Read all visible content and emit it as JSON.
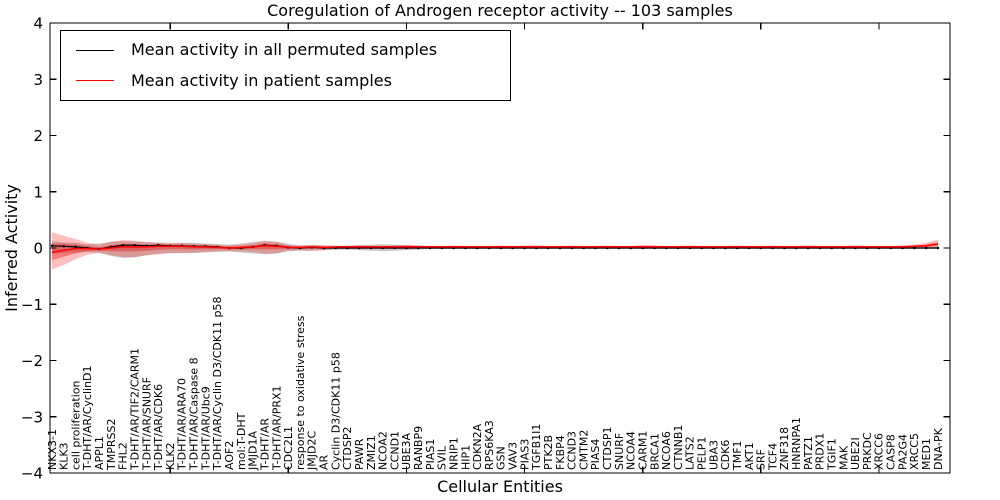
{
  "figure": {
    "title": "Coregulation of Androgen receptor activity -- 103 samples",
    "xlabel": "Cellular Entities",
    "ylabel": "Inferred Activity"
  },
  "legend": {
    "entries": [
      {
        "label": "Mean activity in all permuted samples",
        "color": "#000000"
      },
      {
        "label": "Mean activity in patient samples",
        "color": "#ff0000"
      }
    ]
  },
  "colors": {
    "permuted_line": "#000000",
    "patient_line": "#ff0000",
    "permuted_band": "rgba(128,128,128,0.40)",
    "patient_band": "rgba(255,0,0,0.25)",
    "patient_band_inner": "rgba(230,0,0,0.35)",
    "axes": "#000000",
    "background": "#ffffff"
  },
  "chart_data": {
    "type": "line",
    "title": "Coregulation of Androgen receptor activity -- 103 samples",
    "xlabel": "Cellular Entities",
    "ylabel": "Inferred Activity",
    "ylim": [
      -4,
      4
    ],
    "ytick_values": [
      4,
      3,
      2,
      1,
      0,
      -1,
      -2,
      -3,
      -4
    ],
    "ytick_labels": [
      "4",
      "3",
      "2",
      "1",
      "0",
      "−1",
      "−2",
      "−3",
      "−4"
    ],
    "xtick_step": 10,
    "grid": false,
    "legend_position": "upper left",
    "categories": [
      "NKX3-1",
      "KLK3",
      "cell proliferation",
      "T-DHT/AR/CyclinD1",
      "APPL1",
      "TMPRSS2",
      "FHL2",
      "T-DHT/AR/TIF2/CARM1",
      "T-DHT/AR/SNURF",
      "T-DHT/AR/CDK6",
      "KLK2",
      "T-DHT/AR/ARA70",
      "T-DHT/AR/Caspase 8",
      "T-DHT/AR/Ubc9",
      "T-DHT/AR/Cyclin D3/CDK11 p58",
      "AOF2",
      "mol:T-DHT",
      "JMJD1A",
      "T-DHT/AR",
      "T-DHT/AR/PRX1",
      "CDC2L1",
      "response to oxidative stress",
      "JMJD2C",
      "AR",
      "Cyclin D3/CDK11 p58",
      "CTDSP2",
      "PAWR",
      "ZMIZ1",
      "NCOA2",
      "CCND1",
      "UBE3A",
      "RANBP9",
      "PIAS1",
      "SVIL",
      "NRIP1",
      "HIP1",
      "CDKN2A",
      "RPS6KA3",
      "GSN",
      "VAV3",
      "PIAS3",
      "TGFB1I1",
      "PTK2B",
      "FKBP4",
      "CCND3",
      "CMTM2",
      "PIAS4",
      "CTDSP1",
      "SNURF",
      "NCOA4",
      "CARM1",
      "BRCA1",
      "NCOA6",
      "CTNNB1",
      "LATS2",
      "PELP1",
      "UBA3",
      "CDK6",
      "TMF1",
      "AKT1",
      "SRF",
      "TCF4",
      "ZNF318",
      "HNRNPA1",
      "PATZ1",
      "PRDX1",
      "TGIF1",
      "MAK",
      "UBE2I",
      "PRKDC",
      "XRCC6",
      "CASP8",
      "PA2G4",
      "XRCC5",
      "MED1",
      "DNA-PK"
    ],
    "series": [
      {
        "name": "Mean activity in all permuted samples",
        "color": "#000000",
        "values": [
          0.04,
          0.03,
          0.02,
          0,
          -0.02,
          0.02,
          0.05,
          0.05,
          0.04,
          0.05,
          0.04,
          0.04,
          0.03,
          0.03,
          0.02,
          0,
          0,
          0.02,
          0.05,
          0.04,
          0.01,
          0,
          0.01,
          0,
          0,
          0,
          0,
          0,
          0,
          0,
          0,
          0,
          0,
          0,
          0,
          0,
          0,
          0,
          0,
          0,
          0,
          0,
          0,
          0,
          0,
          0,
          0,
          0,
          0,
          0,
          0,
          0,
          0,
          0,
          0,
          0,
          0,
          0,
          0,
          0,
          0,
          0,
          0,
          0,
          0,
          0,
          0,
          0,
          0,
          0,
          0,
          0,
          0,
          0,
          0,
          0
        ],
        "band_upper": [
          0.12,
          0.1,
          0.09,
          0.07,
          0.08,
          0.11,
          0.12,
          0.11,
          0.1,
          0.09,
          0.08,
          0.09,
          0.09,
          0.08,
          0.07,
          0.06,
          0.08,
          0.11,
          0.12,
          0.11,
          0.07,
          0.05,
          0.05,
          0.04,
          0.04,
          0.04,
          0.05,
          0.06,
          0.07,
          0.06,
          0.05,
          0.04,
          0.03,
          0.03,
          0.03,
          0.03,
          0.03,
          0.03,
          0.03,
          0.03,
          0.03,
          0.03,
          0.03,
          0.03,
          0.03,
          0.03,
          0.03,
          0.03,
          0.03,
          0.03,
          0.03,
          0.03,
          0.03,
          0.03,
          0.03,
          0.03,
          0.03,
          0.03,
          0.03,
          0.03,
          0.03,
          0.03,
          0.03,
          0.03,
          0.03,
          0.03,
          0.03,
          0.03,
          0.03,
          0.03,
          0.03,
          0.03,
          0.03,
          0.03,
          0.03,
          0.03
        ],
        "band_lower": [
          -0.1,
          -0.09,
          -0.08,
          -0.07,
          -0.09,
          -0.14,
          -0.18,
          -0.17,
          -0.13,
          -0.1,
          -0.09,
          -0.09,
          -0.09,
          -0.08,
          -0.07,
          -0.06,
          -0.08,
          -0.1,
          -0.11,
          -0.1,
          -0.06,
          -0.05,
          -0.05,
          -0.04,
          -0.03,
          -0.03,
          -0.04,
          -0.05,
          -0.06,
          -0.05,
          -0.04,
          -0.03,
          -0.02,
          -0.02,
          -0.02,
          -0.02,
          -0.02,
          -0.02,
          -0.02,
          -0.02,
          -0.02,
          -0.02,
          -0.02,
          -0.02,
          -0.02,
          -0.02,
          -0.02,
          -0.02,
          -0.02,
          -0.02,
          -0.02,
          -0.02,
          -0.02,
          -0.02,
          -0.02,
          -0.02,
          -0.02,
          -0.02,
          -0.02,
          -0.02,
          -0.02,
          -0.02,
          -0.02,
          -0.02,
          -0.02,
          -0.02,
          -0.02,
          -0.02,
          -0.02,
          -0.02,
          -0.02,
          -0.02,
          -0.02,
          -0.02,
          -0.02,
          -0.02
        ]
      },
      {
        "name": "Mean activity in patient samples",
        "color": "#ff0000",
        "values": [
          -0.08,
          -0.04,
          -0.01,
          -0.01,
          -0.02,
          0,
          0.02,
          0.02,
          0.02,
          0.03,
          0.03,
          0.03,
          0.02,
          0.02,
          0.01,
          0,
          0.01,
          0.02,
          0.04,
          0.03,
          0.01,
          0.01,
          0.02,
          0.01,
          0.02,
          0.02,
          0.02,
          0.02,
          0.02,
          0.02,
          0.02,
          0.02,
          0.02,
          0.02,
          0.02,
          0.02,
          0.02,
          0.02,
          0.02,
          0.02,
          0.02,
          0.02,
          0.02,
          0.02,
          0.02,
          0.02,
          0.02,
          0.02,
          0.02,
          0.02,
          0.02,
          0.02,
          0.02,
          0.02,
          0.02,
          0.02,
          0.02,
          0.02,
          0.02,
          0.02,
          0.02,
          0.02,
          0.02,
          0.02,
          0.02,
          0.02,
          0.02,
          0.02,
          0.02,
          0.02,
          0.02,
          0.02,
          0.02,
          0.03,
          0.04,
          0.07
        ],
        "band_upper": [
          0.28,
          0.22,
          0.16,
          0.09,
          0.06,
          0.11,
          0.14,
          0.13,
          0.11,
          0.1,
          0.09,
          0.09,
          0.08,
          0.07,
          0.06,
          0.05,
          0.06,
          0.08,
          0.13,
          0.11,
          0.06,
          0.04,
          0.06,
          0.05,
          0.04,
          0.04,
          0.05,
          0.04,
          0.04,
          0.05,
          0.06,
          0.05,
          0.04,
          0.04,
          0.05,
          0.04,
          0.04,
          0.04,
          0.05,
          0.04,
          0.05,
          0.05,
          0.04,
          0.04,
          0.05,
          0.04,
          0.04,
          0.05,
          0.04,
          0.04,
          0.06,
          0.05,
          0.04,
          0.04,
          0.05,
          0.04,
          0.04,
          0.04,
          0.05,
          0.04,
          0.04,
          0.05,
          0.04,
          0.04,
          0.05,
          0.04,
          0.04,
          0.04,
          0.05,
          0.04,
          0.04,
          0.04,
          0.05,
          0.06,
          0.09,
          0.15
        ],
        "band_lower": [
          -0.38,
          -0.3,
          -0.2,
          -0.12,
          -0.08,
          -0.13,
          -0.16,
          -0.16,
          -0.13,
          -0.11,
          -0.09,
          -0.09,
          -0.08,
          -0.07,
          -0.06,
          -0.06,
          -0.06,
          -0.07,
          -0.1,
          -0.09,
          -0.05,
          -0.04,
          -0.05,
          -0.04,
          -0.02,
          -0.02,
          -0.02,
          -0.02,
          -0.02,
          -0.02,
          -0.02,
          -0.01,
          -0.01,
          -0.01,
          -0.01,
          -0.01,
          -0.01,
          -0.01,
          -0.01,
          -0.01,
          -0.01,
          -0.01,
          -0.01,
          -0.01,
          -0.01,
          -0.01,
          -0.01,
          -0.01,
          -0.01,
          -0.01,
          -0.01,
          -0.01,
          -0.01,
          -0.01,
          -0.01,
          -0.01,
          -0.01,
          -0.01,
          -0.01,
          -0.01,
          -0.01,
          -0.01,
          -0.01,
          -0.01,
          -0.01,
          -0.01,
          -0.01,
          -0.01,
          -0.01,
          -0.01,
          -0.01,
          -0.01,
          -0.01,
          -0.01,
          0,
          0.01
        ]
      }
    ]
  }
}
